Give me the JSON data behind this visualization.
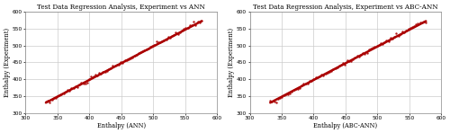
{
  "plot1": {
    "title": "Test Data Regression Analysis, Experiment vs ANN",
    "xlabel": "Enthalpy (ANN)",
    "ylabel": "Enthalpy (Experiment)",
    "xlim": [
      300,
      600
    ],
    "ylim": [
      300,
      600
    ],
    "xticks": [
      300,
      350,
      400,
      450,
      500,
      550,
      600
    ],
    "yticks": [
      300,
      350,
      400,
      450,
      500,
      550,
      600
    ]
  },
  "plot2": {
    "title": "Test Data Regression Analysis, Experiment vs ABC-ANN",
    "xlabel": "Enthalpy (ABC-ANN)",
    "ylabel": "Enthalpy (Experiment)",
    "xlim": [
      300,
      600
    ],
    "ylim": [
      300,
      600
    ],
    "xticks": [
      300,
      350,
      400,
      450,
      500,
      550,
      600
    ],
    "yticks": [
      300,
      350,
      400,
      450,
      500,
      550,
      600
    ]
  },
  "line_color": "#aa0000",
  "scatter_color": "#aa0000",
  "scatter_size": 3,
  "line_width": 1.8,
  "title_fontsize": 5.2,
  "label_fontsize": 4.8,
  "tick_fontsize": 4.2,
  "background_color": "#ffffff",
  "fig_background_color": "#ffffff",
  "grid_color": "#cccccc",
  "grid_linewidth": 0.5,
  "spine_color": "#888888",
  "spine_linewidth": 0.5
}
